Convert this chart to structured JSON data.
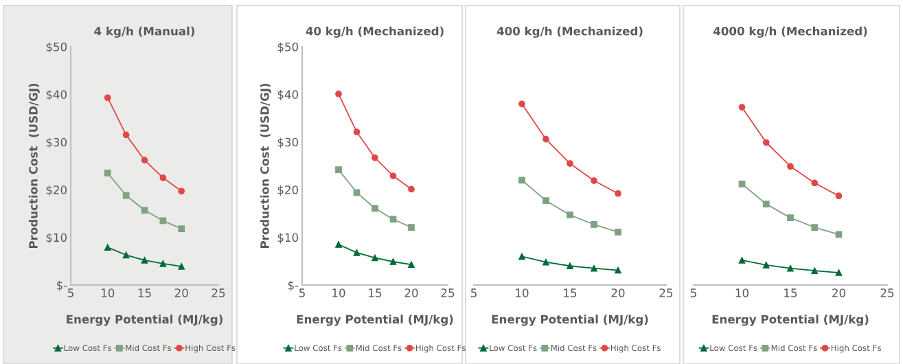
{
  "chart_data": [
    {
      "type": "line",
      "title": "4 kg/h (Manual)",
      "xlabel": "Energy Potential (MJ/kg)",
      "ylabel": "Production Cost  (USD/GJ)",
      "x": [
        10,
        12.5,
        15,
        17.5,
        20
      ],
      "xlim": [
        5,
        25
      ],
      "xticks": [
        5,
        10,
        15,
        20,
        25
      ],
      "ylim": [
        0,
        50
      ],
      "yticks": [
        {
          "value": 0,
          "label": "$-"
        },
        {
          "value": 10,
          "label": "$10"
        },
        {
          "value": 20,
          "label": "$20"
        },
        {
          "value": 30,
          "label": "$30"
        },
        {
          "value": 40,
          "label": "$40"
        },
        {
          "value": 50,
          "label": "$50"
        }
      ],
      "grid": false,
      "legend": "bottom",
      "series": [
        {
          "name": "Low Cost Fs",
          "color": "#006b36",
          "marker": "triangle",
          "values": [
            7.9,
            6.3,
            5.2,
            4.5,
            3.9
          ]
        },
        {
          "name": "Mid Cost Fs",
          "color": "#7fa283",
          "marker": "square",
          "values": [
            23.5,
            18.8,
            15.7,
            13.5,
            11.8
          ]
        },
        {
          "name": "High Cost Fs",
          "color": "#e04848",
          "marker": "circle",
          "values": [
            39.3,
            31.5,
            26.2,
            22.5,
            19.7
          ]
        }
      ]
    },
    {
      "type": "line",
      "title": "40 kg/h (Mechanized)",
      "xlabel": "Energy Potential (MJ/kg)",
      "ylabel": "Production Cost  (USD/GJ)",
      "x": [
        10,
        12.5,
        15,
        17.5,
        20
      ],
      "xlim": [
        5,
        25
      ],
      "xticks": [
        5,
        10,
        15,
        20,
        25
      ],
      "ylim": [
        0,
        50
      ],
      "yticks": [
        {
          "value": 0,
          "label": "$-"
        },
        {
          "value": 10,
          "label": "$10"
        },
        {
          "value": 20,
          "label": "$20"
        },
        {
          "value": 30,
          "label": "$30"
        },
        {
          "value": 40,
          "label": "$40"
        },
        {
          "value": 50,
          "label": "$50"
        }
      ],
      "grid": false,
      "legend": "bottom",
      "series": [
        {
          "name": "Low Cost Fs",
          "color": "#006b36",
          "marker": "triangle",
          "values": [
            8.5,
            6.8,
            5.7,
            4.9,
            4.3
          ]
        },
        {
          "name": "Mid Cost Fs",
          "color": "#7fa283",
          "marker": "square",
          "values": [
            24.2,
            19.4,
            16.1,
            13.8,
            12.1
          ]
        },
        {
          "name": "High Cost Fs",
          "color": "#e04848",
          "marker": "circle",
          "values": [
            40.1,
            32.1,
            26.7,
            22.9,
            20.1
          ]
        }
      ]
    },
    {
      "type": "line",
      "title": "400 kg/h (Mechanized)",
      "xlabel": "Energy Potential (MJ/kg)",
      "x": [
        10,
        12.5,
        15,
        17.5,
        20
      ],
      "xlim": [
        5,
        25
      ],
      "xticks": [
        5,
        10,
        15,
        20,
        25
      ],
      "ylim": [
        0,
        50
      ],
      "tick_labels": "x",
      "grid": false,
      "legend": "bottom",
      "series": [
        {
          "name": "Low Cost Fs",
          "color": "#006b36",
          "marker": "triangle",
          "values": [
            6.0,
            4.8,
            4.0,
            3.5,
            3.1
          ]
        },
        {
          "name": "Mid Cost Fs",
          "color": "#7fa283",
          "marker": "square",
          "values": [
            22.0,
            17.7,
            14.7,
            12.7,
            11.1
          ]
        },
        {
          "name": "High Cost Fs",
          "color": "#e04848",
          "marker": "circle",
          "values": [
            38.0,
            30.6,
            25.5,
            21.9,
            19.2
          ]
        }
      ]
    },
    {
      "type": "line",
      "title": "4000 kg/h (Mechanized)",
      "xlabel": "Energy Potential (MJ/kg)",
      "x": [
        10,
        12.5,
        15,
        17.5,
        20
      ],
      "xlim": [
        5,
        25
      ],
      "xticks": [
        5,
        10,
        15,
        20,
        25
      ],
      "ylim": [
        0,
        50
      ],
      "tick_labels": "x",
      "grid": false,
      "legend": "bottom",
      "series": [
        {
          "name": "Low Cost Fs",
          "color": "#006b36",
          "marker": "triangle",
          "values": [
            5.2,
            4.2,
            3.5,
            3.0,
            2.6
          ]
        },
        {
          "name": "Mid Cost Fs",
          "color": "#7fa283",
          "marker": "square",
          "values": [
            21.2,
            17.0,
            14.1,
            12.1,
            10.6
          ]
        },
        {
          "name": "High Cost Fs",
          "color": "#e04848",
          "marker": "circle",
          "values": [
            37.3,
            29.9,
            24.9,
            21.4,
            18.7
          ]
        }
      ]
    }
  ]
}
